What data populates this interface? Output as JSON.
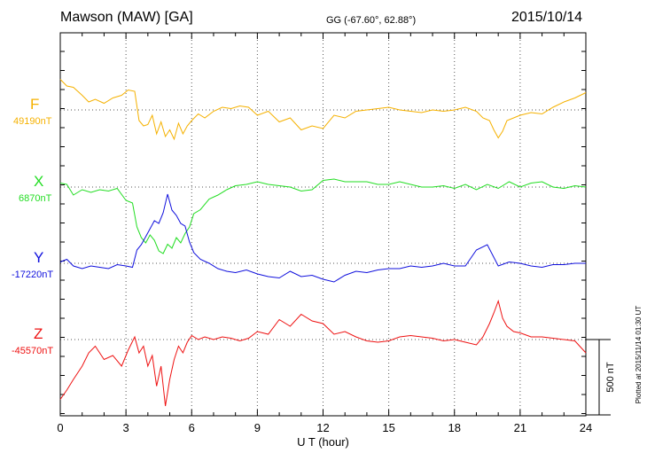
{
  "header": {
    "station": "Mawson (MAW)  [GA]",
    "coords": "GG (-67.60°,  62.88°)",
    "date": "2015/10/14"
  },
  "plotted_note": "Plotted at 2015/11/14 01:30 UT",
  "chart_data": {
    "type": "line",
    "title": "Mawson (MAW)  [GA]",
    "xlabel": "U T (hour)",
    "xlim": [
      0,
      24
    ],
    "xticks": [
      "0",
      "3",
      "6",
      "9",
      "12",
      "15",
      "18",
      "21",
      "24"
    ],
    "scale_label": "500 nT",
    "scale_nT": 500,
    "grid": true,
    "series": [
      {
        "name": "F",
        "baseline_label": "49190nT",
        "color": "#f5b100",
        "x": [
          0,
          0.3,
          0.6,
          1.0,
          1.3,
          1.6,
          2.0,
          2.4,
          2.8,
          3.1,
          3.4,
          3.6,
          3.8,
          4.0,
          4.2,
          4.4,
          4.6,
          4.8,
          5.0,
          5.2,
          5.4,
          5.6,
          5.8,
          6.0,
          6.3,
          6.6,
          7.0,
          7.4,
          7.8,
          8.2,
          8.6,
          9.0,
          9.5,
          10.0,
          10.5,
          11.0,
          11.5,
          12.0,
          12.5,
          13.0,
          13.5,
          14.0,
          14.5,
          15.0,
          15.5,
          16.0,
          16.5,
          17.0,
          17.5,
          18.0,
          18.5,
          19.0,
          19.3,
          19.6,
          19.8,
          20.0,
          20.2,
          20.4,
          20.7,
          21.0,
          21.5,
          22.0,
          22.5,
          23.0,
          23.5,
          24.0
        ],
        "y": [
          230,
          180,
          170,
          110,
          60,
          80,
          50,
          90,
          110,
          150,
          140,
          -80,
          -120,
          -110,
          -40,
          -180,
          -90,
          -200,
          -150,
          -220,
          -100,
          -180,
          -120,
          -80,
          -30,
          -60,
          -10,
          20,
          10,
          30,
          20,
          -40,
          -10,
          -90,
          -60,
          -150,
          -120,
          -140,
          -40,
          -60,
          -10,
          0,
          10,
          20,
          0,
          -10,
          -20,
          0,
          -10,
          0,
          20,
          -10,
          -60,
          -80,
          -150,
          -210,
          -160,
          -80,
          -60,
          -40,
          -20,
          -30,
          20,
          60,
          90,
          130
        ]
      },
      {
        "name": "X",
        "baseline_label": "6870nT",
        "color": "#22dd22",
        "x": [
          0,
          0.3,
          0.6,
          1.0,
          1.4,
          1.8,
          2.2,
          2.6,
          3.0,
          3.3,
          3.5,
          3.7,
          3.9,
          4.1,
          4.3,
          4.5,
          4.7,
          4.9,
          5.1,
          5.3,
          5.5,
          5.7,
          5.9,
          6.1,
          6.4,
          6.8,
          7.2,
          7.6,
          8.0,
          8.5,
          9.0,
          9.5,
          10.0,
          10.5,
          11.0,
          11.5,
          12.0,
          12.5,
          13.0,
          13.5,
          14.0,
          14.5,
          15.0,
          15.5,
          16.0,
          16.5,
          17.0,
          17.5,
          18.0,
          18.5,
          19.0,
          19.5,
          20.0,
          20.5,
          21.0,
          21.5,
          22.0,
          22.5,
          23.0,
          23.5,
          24.0
        ],
        "y": [
          30,
          20,
          -60,
          -20,
          -40,
          -20,
          -30,
          -10,
          -100,
          -120,
          -300,
          -380,
          -420,
          -360,
          -400,
          -480,
          -500,
          -430,
          -460,
          -380,
          -420,
          -350,
          -300,
          -200,
          -170,
          -90,
          -60,
          -20,
          10,
          20,
          40,
          20,
          10,
          0,
          -30,
          -20,
          50,
          60,
          40,
          40,
          40,
          20,
          20,
          40,
          20,
          0,
          0,
          10,
          -10,
          20,
          -20,
          20,
          -10,
          40,
          0,
          30,
          40,
          0,
          -10,
          10,
          0
        ]
      },
      {
        "name": "Y",
        "baseline_label": "-17220nT",
        "color": "#1010dd",
        "x": [
          0,
          0.3,
          0.6,
          1.0,
          1.4,
          1.8,
          2.2,
          2.6,
          3.0,
          3.3,
          3.5,
          3.7,
          3.9,
          4.1,
          4.3,
          4.5,
          4.7,
          4.9,
          5.1,
          5.3,
          5.5,
          5.7,
          5.9,
          6.1,
          6.4,
          6.8,
          7.2,
          7.6,
          8.0,
          8.5,
          9.0,
          9.5,
          10.0,
          10.5,
          11.0,
          11.5,
          12.0,
          12.5,
          13.0,
          13.5,
          14.0,
          14.5,
          15.0,
          15.5,
          16.0,
          16.5,
          17.0,
          17.5,
          18.0,
          18.5,
          19.0,
          19.5,
          20.0,
          20.5,
          21.0,
          21.5,
          22.0,
          22.5,
          23.0,
          23.5,
          24.0
        ],
        "y": [
          10,
          30,
          -20,
          -40,
          -20,
          -30,
          -40,
          -10,
          -20,
          -30,
          100,
          140,
          200,
          260,
          320,
          300,
          380,
          520,
          400,
          360,
          300,
          280,
          160,
          80,
          30,
          0,
          -40,
          -60,
          -70,
          -50,
          -80,
          -100,
          -110,
          -60,
          -100,
          -90,
          -120,
          -140,
          -90,
          -60,
          -70,
          -50,
          -40,
          -40,
          -20,
          -30,
          -20,
          0,
          -20,
          -20,
          100,
          140,
          -20,
          10,
          0,
          -20,
          -30,
          -10,
          -10,
          0,
          0
        ]
      },
      {
        "name": "Z",
        "baseline_label": "-45570nT",
        "color": "#ee1111",
        "x": [
          0,
          0.3,
          0.6,
          1.0,
          1.3,
          1.6,
          2.0,
          2.4,
          2.8,
          3.1,
          3.4,
          3.6,
          3.8,
          4.0,
          4.2,
          4.4,
          4.6,
          4.8,
          5.0,
          5.2,
          5.4,
          5.6,
          5.8,
          6.0,
          6.3,
          6.6,
          7.0,
          7.4,
          7.8,
          8.2,
          8.6,
          9.0,
          9.5,
          10.0,
          10.5,
          11.0,
          11.5,
          12.0,
          12.5,
          13.0,
          13.5,
          14.0,
          14.5,
          15.0,
          15.5,
          16.0,
          16.5,
          17.0,
          17.5,
          18.0,
          18.5,
          19.0,
          19.3,
          19.6,
          19.8,
          20.0,
          20.2,
          20.4,
          20.7,
          21.0,
          21.5,
          22.0,
          22.5,
          23.0,
          23.5,
          24.0
        ],
        "y": [
          -450,
          -380,
          -300,
          -200,
          -100,
          -50,
          -150,
          -120,
          -200,
          -80,
          20,
          -100,
          -50,
          -200,
          -120,
          -350,
          -200,
          -500,
          -300,
          -150,
          -50,
          -100,
          -20,
          30,
          0,
          20,
          0,
          20,
          10,
          -10,
          10,
          60,
          40,
          150,
          100,
          190,
          140,
          120,
          40,
          60,
          20,
          -10,
          -20,
          -10,
          20,
          30,
          20,
          10,
          -10,
          0,
          -20,
          -40,
          20,
          120,
          200,
          290,
          160,
          100,
          60,
          50,
          20,
          20,
          10,
          0,
          -10,
          -100
        ]
      }
    ]
  }
}
